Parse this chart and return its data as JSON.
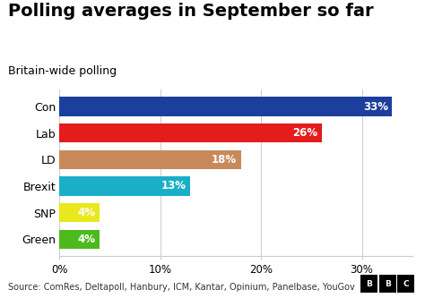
{
  "title": "Polling averages in September so far",
  "subtitle": "Britain-wide polling",
  "categories": [
    "Con",
    "Lab",
    "LD",
    "Brexit",
    "SNP",
    "Green"
  ],
  "values": [
    33,
    26,
    18,
    13,
    4,
    4
  ],
  "colors": [
    "#1c3f9e",
    "#e41c1c",
    "#c8895a",
    "#1aaec8",
    "#e8e81c",
    "#4cba1c"
  ],
  "labels": [
    "33%",
    "26%",
    "18%",
    "13%",
    "4%",
    "4%"
  ],
  "xlim": [
    0,
    35
  ],
  "xticks": [
    0,
    10,
    20,
    30
  ],
  "xticklabels": [
    "0%",
    "10%",
    "20%",
    "30%"
  ],
  "source_text": "Source: ComRes, Deltapoll, Hanbury, ICM, Kantar, Opinium, Panelbase, YouGov",
  "bg_color": "#ffffff",
  "bar_text_color": "#ffffff",
  "title_fontsize": 14,
  "subtitle_fontsize": 9,
  "label_fontsize": 8.5,
  "tick_fontsize": 8.5,
  "source_fontsize": 7,
  "bar_height": 0.72
}
